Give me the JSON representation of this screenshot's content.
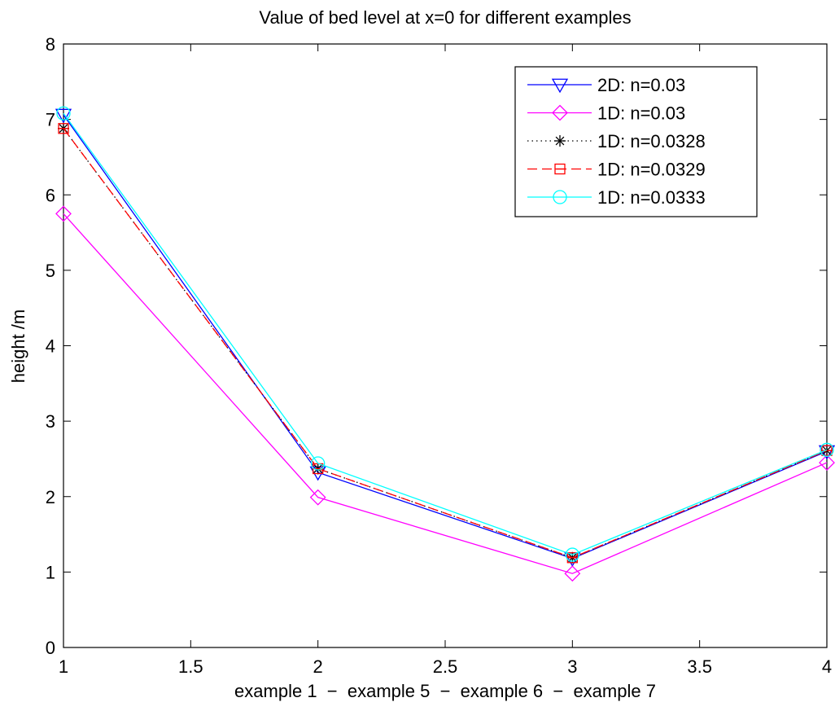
{
  "chart_data": {
    "type": "line",
    "title": "Value of bed level at x=0 for different examples",
    "xlabel": "example 1  −  example 5  −  example 6  −  example 7",
    "ylabel": "height /m",
    "xlim": [
      1,
      4
    ],
    "ylim": [
      0,
      8
    ],
    "xticks": [
      "1",
      "1.5",
      "2",
      "2.5",
      "3",
      "3.5",
      "4"
    ],
    "yticks": [
      "0",
      "1",
      "2",
      "3",
      "4",
      "5",
      "6",
      "7",
      "8"
    ],
    "grid": false,
    "legend_position": "top-right",
    "x": [
      1,
      2,
      3,
      4
    ],
    "series": [
      {
        "name": "2D: n=0.03",
        "values": [
          7.06,
          2.32,
          1.18,
          2.6
        ],
        "color": "#0000ff",
        "marker": "triangle-down",
        "dash": "solid"
      },
      {
        "name": "1D: n=0.03",
        "values": [
          5.75,
          1.99,
          0.98,
          2.45
        ],
        "color": "#ff00ff",
        "marker": "diamond",
        "dash": "solid"
      },
      {
        "name": "1D: n=0.0328",
        "values": [
          6.88,
          2.37,
          1.19,
          2.61
        ],
        "color": "#000000",
        "marker": "asterisk",
        "dash": "dotted"
      },
      {
        "name": "1D: n=0.0329",
        "values": [
          6.88,
          2.37,
          1.19,
          2.61
        ],
        "color": "#ff0000",
        "marker": "square-plus",
        "dash": "dashed"
      },
      {
        "name": "1D: n=0.0333",
        "values": [
          7.08,
          2.44,
          1.23,
          2.62
        ],
        "color": "#00ffff",
        "marker": "circle",
        "dash": "solid"
      }
    ]
  }
}
